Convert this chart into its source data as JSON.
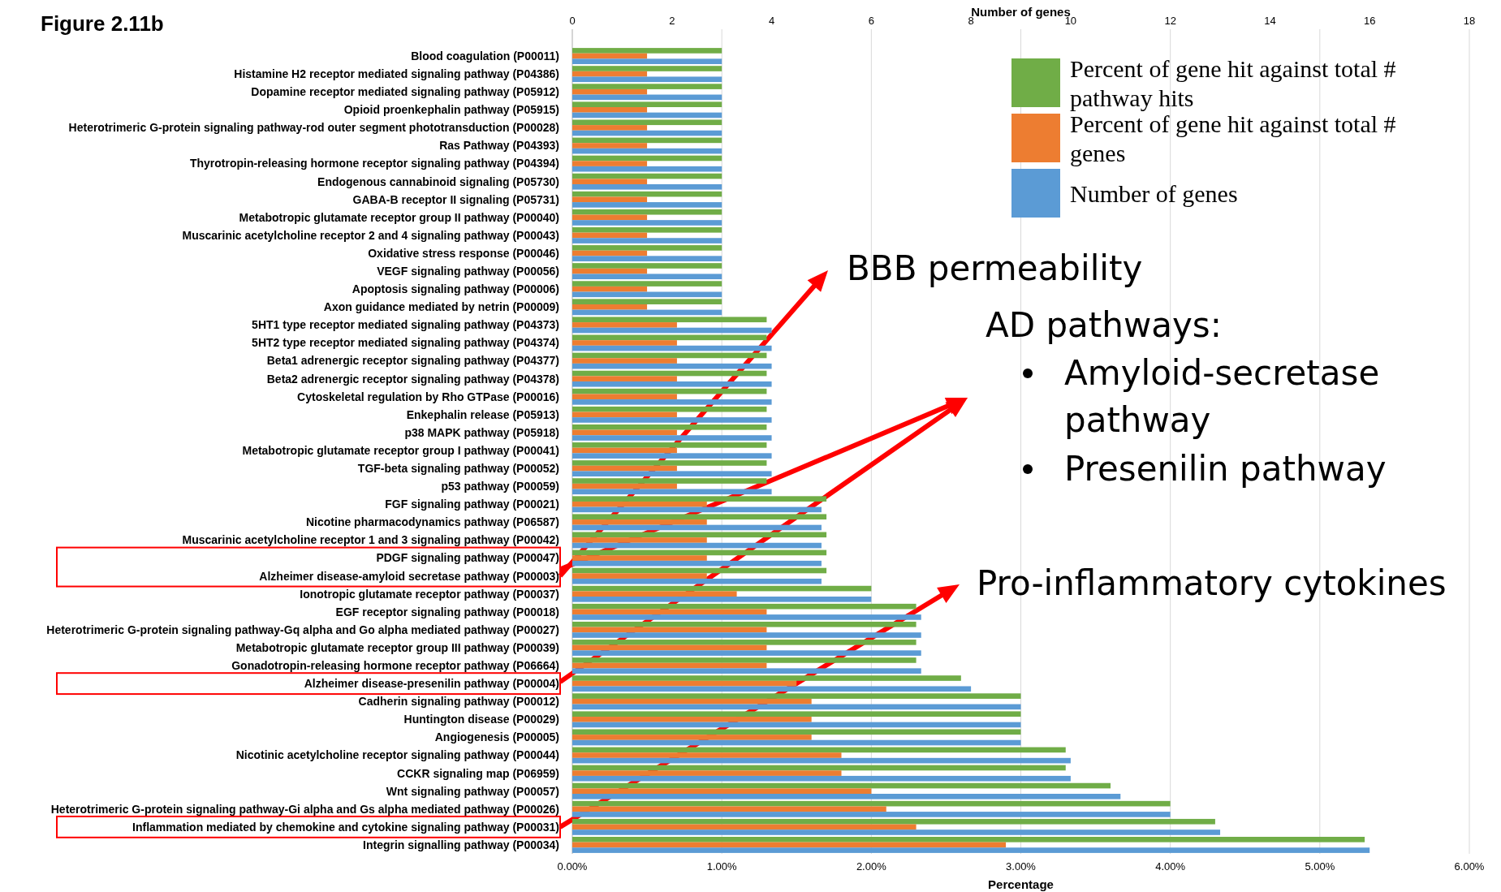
{
  "chart_data": {
    "type": "bar",
    "orientation": "horizontal",
    "title": "Figure 2.11b",
    "categories": [
      "Blood coagulation (P00011)",
      "Histamine H2 receptor mediated signaling pathway (P04386)",
      "Dopamine receptor mediated signaling pathway (P05912)",
      "Opioid proenkephalin pathway (P05915)",
      "Heterotrimeric G-protein signaling pathway-rod outer segment phototransduction (P00028)",
      "Ras Pathway (P04393)",
      "Thyrotropin-releasing hormone receptor signaling pathway (P04394)",
      "Endogenous cannabinoid signaling (P05730)",
      "GABA-B receptor II signaling (P05731)",
      "Metabotropic glutamate receptor group II pathway (P00040)",
      "Muscarinic acetylcholine receptor 2 and 4 signaling pathway (P00043)",
      "Oxidative stress response (P00046)",
      "VEGF signaling pathway (P00056)",
      "Apoptosis signaling pathway (P00006)",
      "Axon guidance mediated by netrin (P00009)",
      "5HT1 type receptor mediated signaling pathway (P04373)",
      "5HT2 type receptor mediated signaling pathway (P04374)",
      "Beta1 adrenergic receptor signaling pathway (P04377)",
      "Beta2 adrenergic receptor signaling pathway (P04378)",
      "Cytoskeletal regulation by Rho GTPase (P00016)",
      "Enkephalin release (P05913)",
      "p38 MAPK pathway (P05918)",
      "Metabotropic glutamate receptor group I pathway (P00041)",
      "TGF-beta signaling pathway (P00052)",
      "p53 pathway (P00059)",
      "FGF signaling pathway (P00021)",
      "Nicotine pharmacodynamics pathway (P06587)",
      "Muscarinic acetylcholine receptor 1 and 3 signaling pathway (P00042)",
      "PDGF signaling pathway (P00047)",
      "Alzheimer disease-amyloid secretase pathway (P00003)",
      "Ionotropic glutamate receptor pathway (P00037)",
      "EGF receptor signaling pathway (P00018)",
      "Heterotrimeric G-protein signaling pathway-Gq alpha and Go alpha mediated pathway (P00027)",
      "Metabotropic glutamate receptor group III pathway (P00039)",
      "Gonadotropin-releasing hormone receptor pathway (P06664)",
      "Alzheimer disease-presenilin pathway (P00004)",
      "Cadherin signaling pathway (P00012)",
      "Huntington disease (P00029)",
      "Angiogenesis (P00005)",
      "Nicotinic acetylcholine receptor signaling pathway (P00044)",
      "CCKR signaling map (P06959)",
      "Wnt signaling pathway (P00057)",
      "Heterotrimeric G-protein signaling pathway-Gi alpha and Gs alpha mediated pathway (P00026)",
      "Inflammation mediated by chemokine and cytokine signaling pathway (P00031)",
      "Integrin signalling pathway (P00034)"
    ],
    "series": [
      {
        "name": "Percent of gene hit against total # pathway hits",
        "color": "#70ad47",
        "values": [
          1.0,
          1.0,
          1.0,
          1.0,
          1.0,
          1.0,
          1.0,
          1.0,
          1.0,
          1.0,
          1.0,
          1.0,
          1.0,
          1.0,
          1.0,
          1.3,
          1.3,
          1.3,
          1.3,
          1.3,
          1.3,
          1.3,
          1.3,
          1.3,
          1.3,
          1.7,
          1.7,
          1.7,
          1.7,
          1.7,
          2.0,
          2.3,
          2.3,
          2.3,
          2.3,
          2.6,
          3.0,
          3.0,
          3.0,
          3.3,
          3.3,
          3.6,
          4.0,
          4.3,
          5.3
        ]
      },
      {
        "name": "Percent of gene hit against total # genes",
        "color": "#ed7d31",
        "values": [
          0.5,
          0.5,
          0.5,
          0.5,
          0.5,
          0.5,
          0.5,
          0.5,
          0.5,
          0.5,
          0.5,
          0.5,
          0.5,
          0.5,
          0.5,
          0.7,
          0.7,
          0.7,
          0.7,
          0.7,
          0.7,
          0.7,
          0.7,
          0.7,
          0.7,
          0.9,
          0.9,
          0.9,
          0.9,
          0.9,
          1.1,
          1.3,
          1.3,
          1.3,
          1.3,
          1.5,
          1.6,
          1.6,
          1.6,
          1.8,
          1.8,
          2.0,
          2.1,
          2.3,
          2.9
        ]
      },
      {
        "name": "Number of genes",
        "color": "#5b9bd5",
        "axis": "x2",
        "values": [
          3,
          3,
          3,
          3,
          3,
          3,
          3,
          3,
          3,
          3,
          3,
          3,
          3,
          3,
          3,
          4,
          4,
          4,
          4,
          4,
          4,
          4,
          4,
          4,
          4,
          5,
          5,
          5,
          5,
          5,
          6,
          7,
          7,
          7,
          7,
          8,
          9,
          9,
          9,
          10,
          10,
          11,
          12,
          13,
          16
        ]
      }
    ],
    "xlim": [
      0,
      6
    ],
    "xticks": [
      {
        "value": 0,
        "label": "0.00%"
      },
      {
        "value": 1,
        "label": "1.00%"
      },
      {
        "value": 2,
        "label": "2.00%"
      },
      {
        "value": 3,
        "label": "3.00%"
      },
      {
        "value": 4,
        "label": "4.00%"
      },
      {
        "value": 5,
        "label": "5.00%"
      },
      {
        "value": 6,
        "label": "6.00%"
      }
    ],
    "xlabel": "Percentage",
    "x2lim": [
      0,
      18
    ],
    "x2ticks": [
      0,
      2,
      4,
      6,
      8,
      10,
      12,
      14,
      16,
      18
    ],
    "x2label": "Number of genes",
    "grid": "x",
    "legend": "top right",
    "annotations": [
      "BBB permeability",
      "AD pathways:",
      "Amyloid-secretase pathway",
      "Presenilin pathway",
      "Pro-inflammatory cytokines"
    ]
  }
}
